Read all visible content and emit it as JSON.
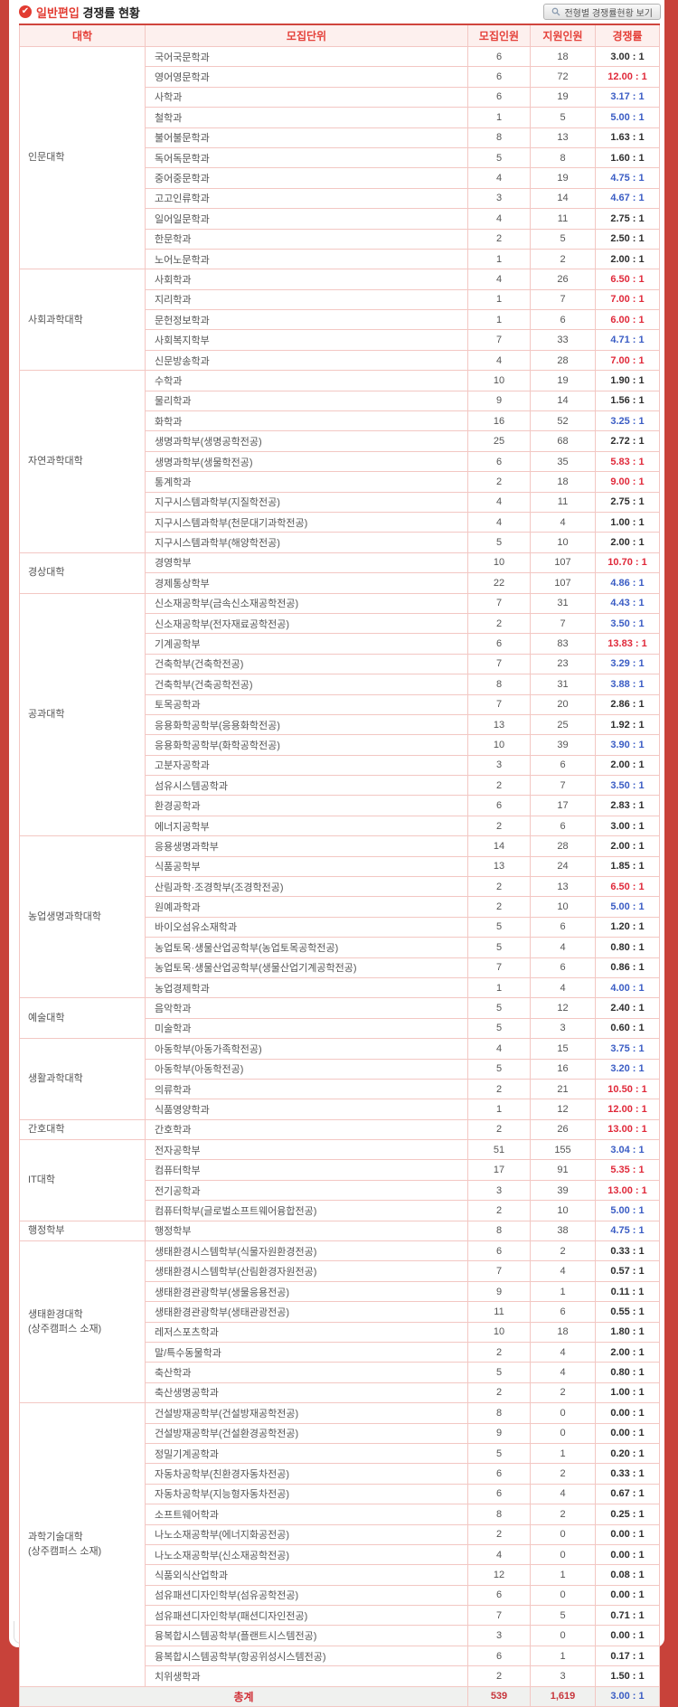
{
  "page": {
    "title_badge": "일반편입",
    "title_rest": "경쟁률 현황",
    "button_label": "전형별 경쟁률현황 보기"
  },
  "colors": {
    "page_background": "#c8423a",
    "accent_red": "#e23b31",
    "header_text": "#e5423b",
    "header_background": "#fdf0ee",
    "rate": {
      "red": "#e0293a",
      "blue": "#3a5cc4",
      "black": "#2e2e2e"
    },
    "total_number": "#c7353b",
    "total_label": "#d02f36"
  },
  "table": {
    "headers": [
      "대학",
      "모집단위",
      "모집인원",
      "지원인원",
      "경쟁률"
    ],
    "rate_suffix": " : 1",
    "groups": [
      {
        "college": "인문대학",
        "rows": [
          [
            "국어국문학과",
            6,
            18,
            "3.00",
            "black"
          ],
          [
            "영어영문학과",
            6,
            72,
            "12.00",
            "red"
          ],
          [
            "사학과",
            6,
            19,
            "3.17",
            "blue"
          ],
          [
            "철학과",
            1,
            5,
            "5.00",
            "blue"
          ],
          [
            "불어불문학과",
            8,
            13,
            "1.63",
            "black"
          ],
          [
            "독어독문학과",
            5,
            8,
            "1.60",
            "black"
          ],
          [
            "중어중문학과",
            4,
            19,
            "4.75",
            "blue"
          ],
          [
            "고고인류학과",
            3,
            14,
            "4.67",
            "blue"
          ],
          [
            "일어일문학과",
            4,
            11,
            "2.75",
            "black"
          ],
          [
            "한문학과",
            2,
            5,
            "2.50",
            "black"
          ],
          [
            "노어노문학과",
            1,
            2,
            "2.00",
            "black"
          ]
        ]
      },
      {
        "college": "사회과학대학",
        "rows": [
          [
            "사회학과",
            4,
            26,
            "6.50",
            "red"
          ],
          [
            "지리학과",
            1,
            7,
            "7.00",
            "red"
          ],
          [
            "문헌정보학과",
            1,
            6,
            "6.00",
            "red"
          ],
          [
            "사회복지학부",
            7,
            33,
            "4.71",
            "blue"
          ],
          [
            "신문방송학과",
            4,
            28,
            "7.00",
            "red"
          ]
        ]
      },
      {
        "college": "자연과학대학",
        "rows": [
          [
            "수학과",
            10,
            19,
            "1.90",
            "black"
          ],
          [
            "물리학과",
            9,
            14,
            "1.56",
            "black"
          ],
          [
            "화학과",
            16,
            52,
            "3.25",
            "blue"
          ],
          [
            "생명과학부(생명공학전공)",
            25,
            68,
            "2.72",
            "black"
          ],
          [
            "생명과학부(생물학전공)",
            6,
            35,
            "5.83",
            "red"
          ],
          [
            "통계학과",
            2,
            18,
            "9.00",
            "red"
          ],
          [
            "지구시스템과학부(지질학전공)",
            4,
            11,
            "2.75",
            "black"
          ],
          [
            "지구시스템과학부(천문대기과학전공)",
            4,
            4,
            "1.00",
            "black"
          ],
          [
            "지구시스템과학부(해양학전공)",
            5,
            10,
            "2.00",
            "black"
          ]
        ]
      },
      {
        "college": "경상대학",
        "rows": [
          [
            "경영학부",
            10,
            107,
            "10.70",
            "red"
          ],
          [
            "경제통상학부",
            22,
            107,
            "4.86",
            "blue"
          ]
        ]
      },
      {
        "college": "공과대학",
        "rows": [
          [
            "신소재공학부(금속신소재공학전공)",
            7,
            31,
            "4.43",
            "blue"
          ],
          [
            "신소재공학부(전자재료공학전공)",
            2,
            7,
            "3.50",
            "blue"
          ],
          [
            "기계공학부",
            6,
            83,
            "13.83",
            "red"
          ],
          [
            "건축학부(건축학전공)",
            7,
            23,
            "3.29",
            "blue"
          ],
          [
            "건축학부(건축공학전공)",
            8,
            31,
            "3.88",
            "blue"
          ],
          [
            "토목공학과",
            7,
            20,
            "2.86",
            "black"
          ],
          [
            "응용화학공학부(응용화학전공)",
            13,
            25,
            "1.92",
            "black"
          ],
          [
            "응용화학공학부(화학공학전공)",
            10,
            39,
            "3.90",
            "blue"
          ],
          [
            "고분자공학과",
            3,
            6,
            "2.00",
            "black"
          ],
          [
            "섬유시스템공학과",
            2,
            7,
            "3.50",
            "blue"
          ],
          [
            "환경공학과",
            6,
            17,
            "2.83",
            "black"
          ],
          [
            "에너지공학부",
            2,
            6,
            "3.00",
            "black"
          ]
        ]
      },
      {
        "college": "농업생명과학대학",
        "rows": [
          [
            "응용생명과학부",
            14,
            28,
            "2.00",
            "black"
          ],
          [
            "식품공학부",
            13,
            24,
            "1.85",
            "black"
          ],
          [
            "산림과학·조경학부(조경학전공)",
            2,
            13,
            "6.50",
            "red"
          ],
          [
            "원예과학과",
            2,
            10,
            "5.00",
            "blue"
          ],
          [
            "바이오섬유소재학과",
            5,
            6,
            "1.20",
            "black"
          ],
          [
            "농업토목·생물산업공학부(농업토목공학전공)",
            5,
            4,
            "0.80",
            "black"
          ],
          [
            "농업토목·생물산업공학부(생물산업기계공학전공)",
            7,
            6,
            "0.86",
            "black"
          ],
          [
            "농업경제학과",
            1,
            4,
            "4.00",
            "blue"
          ]
        ]
      },
      {
        "college": "예술대학",
        "rows": [
          [
            "음악학과",
            5,
            12,
            "2.40",
            "black"
          ],
          [
            "미술학과",
            5,
            3,
            "0.60",
            "black"
          ]
        ]
      },
      {
        "college": "생활과학대학",
        "rows": [
          [
            "아동학부(아동가족학전공)",
            4,
            15,
            "3.75",
            "blue"
          ],
          [
            "아동학부(아동학전공)",
            5,
            16,
            "3.20",
            "blue"
          ],
          [
            "의류학과",
            2,
            21,
            "10.50",
            "red"
          ],
          [
            "식품영양학과",
            1,
            12,
            "12.00",
            "red"
          ]
        ]
      },
      {
        "college": "간호대학",
        "rows": [
          [
            "간호학과",
            2,
            26,
            "13.00",
            "red"
          ]
        ]
      },
      {
        "college": "IT대학",
        "rows": [
          [
            "전자공학부",
            51,
            155,
            "3.04",
            "blue"
          ],
          [
            "컴퓨터학부",
            17,
            91,
            "5.35",
            "red"
          ],
          [
            "전기공학과",
            3,
            39,
            "13.00",
            "red"
          ],
          [
            "컴퓨터학부(글로벌소프트웨어융합전공)",
            2,
            10,
            "5.00",
            "blue"
          ]
        ]
      },
      {
        "college": "행정학부",
        "rows": [
          [
            "행정학부",
            8,
            38,
            "4.75",
            "blue"
          ]
        ]
      },
      {
        "college": "생태환경대학",
        "college_sub": "(상주캠퍼스 소재)",
        "rows": [
          [
            "생태환경시스템학부(식물자원환경전공)",
            6,
            2,
            "0.33",
            "black"
          ],
          [
            "생태환경시스템학부(산림환경자원전공)",
            7,
            4,
            "0.57",
            "black"
          ],
          [
            "생태환경관광학부(생물응용전공)",
            9,
            1,
            "0.11",
            "black"
          ],
          [
            "생태환경관광학부(생태관광전공)",
            11,
            6,
            "0.55",
            "black"
          ],
          [
            "레저스포츠학과",
            10,
            18,
            "1.80",
            "black"
          ],
          [
            "말/특수동물학과",
            2,
            4,
            "2.00",
            "black"
          ],
          [
            "축산학과",
            5,
            4,
            "0.80",
            "black"
          ],
          [
            "축산생명공학과",
            2,
            2,
            "1.00",
            "black"
          ]
        ]
      },
      {
        "college": "과학기술대학",
        "college_sub": "(상주캠퍼스 소재)",
        "rows": [
          [
            "건설방재공학부(건설방재공학전공)",
            8,
            0,
            "0.00",
            "black"
          ],
          [
            "건설방재공학부(건설환경공학전공)",
            9,
            0,
            "0.00",
            "black"
          ],
          [
            "정밀기계공학과",
            5,
            1,
            "0.20",
            "black"
          ],
          [
            "자동차공학부(친환경자동차전공)",
            6,
            2,
            "0.33",
            "black"
          ],
          [
            "자동차공학부(지능형자동차전공)",
            6,
            4,
            "0.67",
            "black"
          ],
          [
            "소프트웨어학과",
            8,
            2,
            "0.25",
            "black"
          ],
          [
            "나노소재공학부(에너지화공전공)",
            2,
            0,
            "0.00",
            "black"
          ],
          [
            "나노소재공학부(신소재공학전공)",
            4,
            0,
            "0.00",
            "black"
          ],
          [
            "식품외식산업학과",
            12,
            1,
            "0.08",
            "black"
          ],
          [
            "섬유패션디자인학부(섬유공학전공)",
            6,
            0,
            "0.00",
            "black"
          ],
          [
            "섬유패션디자인학부(패션디자인전공)",
            7,
            5,
            "0.71",
            "black"
          ],
          [
            "융복합시스템공학부(플랜트시스템전공)",
            3,
            0,
            "0.00",
            "black"
          ],
          [
            "융복합시스템공학부(항공위성시스템전공)",
            6,
            1,
            "0.17",
            "black"
          ],
          [
            "치위생학과",
            2,
            3,
            "1.50",
            "black"
          ]
        ]
      }
    ],
    "total": {
      "label": "총계",
      "recruit": "539",
      "applicants": "1,619",
      "rate": "3.00",
      "rate_color": "blue"
    }
  }
}
